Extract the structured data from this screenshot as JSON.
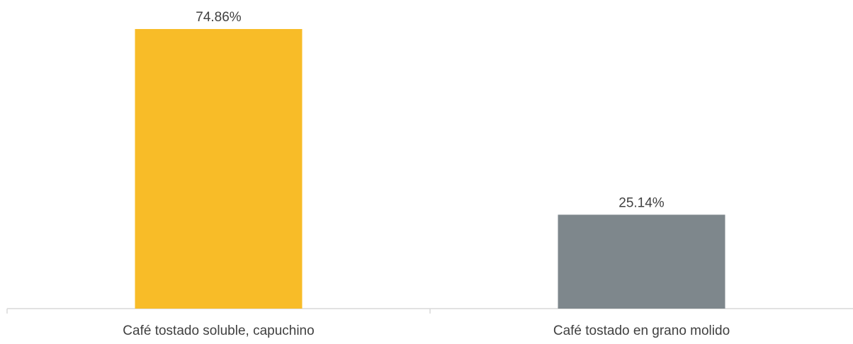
{
  "chart_data": {
    "type": "bar",
    "categories": [
      "Café tostado soluble, capuchino",
      "Café tostado en grano molido"
    ],
    "values": [
      74.86,
      25.14
    ],
    "data_labels": [
      "74.86%",
      "25.14%"
    ],
    "bar_colors": [
      "#F8BC28",
      "#7E878C"
    ],
    "axis_color": "#D9D9D9",
    "ylim": [
      0,
      74.86
    ],
    "grid": false,
    "legend": "none",
    "title": "",
    "xlabel": "",
    "ylabel": ""
  }
}
